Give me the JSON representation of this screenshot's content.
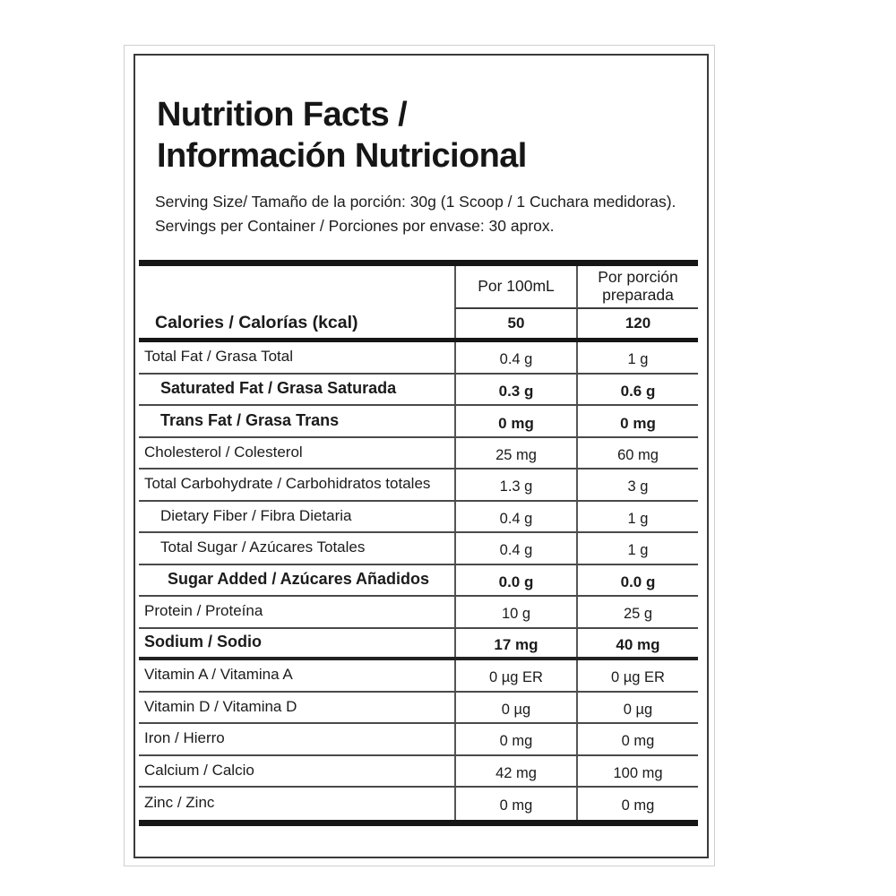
{
  "header": {
    "title_line1": "Nutrition Facts /",
    "title_line2": "Información Nutricional",
    "serving_size": "Serving Size/ Tamaño de la porción: 30g  (1 Scoop / 1 Cuchara medidoras).",
    "servings_per_container": "Servings per Container / Porciones por envase: 30 aprox."
  },
  "table": {
    "column_headers": [
      "Por 100mL",
      "Por porción preparada"
    ],
    "calories": {
      "label": "Calories / Calorías (kcal)",
      "per_100ml": "50",
      "per_portion": "120"
    },
    "rows": [
      {
        "label": "Total Fat / Grasa Total",
        "per_100ml": "0.4 g",
        "per_portion": "1 g",
        "bold": false,
        "indent": 0,
        "thick_divider_after": false
      },
      {
        "label": "Saturated Fat / Grasa Saturada",
        "per_100ml": "0.3 g",
        "per_portion": "0.6 g",
        "bold": true,
        "indent": 1,
        "thick_divider_after": false
      },
      {
        "label": "Trans Fat / Grasa Trans",
        "per_100ml": "0 mg",
        "per_portion": "0 mg",
        "bold": true,
        "indent": 1,
        "thick_divider_after": false
      },
      {
        "label": "Cholesterol / Colesterol",
        "per_100ml": "25 mg",
        "per_portion": "60 mg",
        "bold": false,
        "indent": 0,
        "thick_divider_after": false
      },
      {
        "label": "Total Carbohydrate / Carbohidratos totales",
        "per_100ml": "1.3 g",
        "per_portion": "3 g",
        "bold": false,
        "indent": 0,
        "thick_divider_after": false
      },
      {
        "label": "Dietary Fiber / Fibra Dietaria",
        "per_100ml": "0.4 g",
        "per_portion": "1 g",
        "bold": false,
        "indent": 1,
        "thick_divider_after": false
      },
      {
        "label": "Total Sugar / Azúcares Totales",
        "per_100ml": "0.4 g",
        "per_portion": "1 g",
        "bold": false,
        "indent": 1,
        "thick_divider_after": false
      },
      {
        "label": "Sugar Added / Azúcares Añadidos",
        "per_100ml": "0.0 g",
        "per_portion": "0.0 g",
        "bold": true,
        "indent": 2,
        "thick_divider_after": false
      },
      {
        "label": "Protein / Proteína",
        "per_100ml": "10 g",
        "per_portion": "25 g",
        "bold": false,
        "indent": 0,
        "thick_divider_after": false
      },
      {
        "label": "Sodium / Sodio",
        "per_100ml": "17 mg",
        "per_portion": "40 mg",
        "bold": true,
        "indent": 0,
        "thick_divider_after": true
      },
      {
        "label": "Vitamin A / Vitamina A",
        "per_100ml": "0 µg ER",
        "per_portion": "0 µg ER",
        "bold": false,
        "indent": 0,
        "thick_divider_after": false
      },
      {
        "label": "Vitamin D / Vitamina D",
        "per_100ml": "0 µg",
        "per_portion": "0 µg",
        "bold": false,
        "indent": 0,
        "thick_divider_after": false
      },
      {
        "label": "Iron / Hierro",
        "per_100ml": "0 mg",
        "per_portion": "0 mg",
        "bold": false,
        "indent": 0,
        "thick_divider_after": false
      },
      {
        "label": "Calcium / Calcio",
        "per_100ml": "42 mg",
        "per_portion": "100 mg",
        "bold": false,
        "indent": 0,
        "thick_divider_after": false
      },
      {
        "label": "Zinc / Zinc",
        "per_100ml": "0 mg",
        "per_portion": "0 mg",
        "bold": false,
        "indent": 0,
        "thick_divider_after": false
      }
    ]
  },
  "colors": {
    "frame_dark": "#3a3a3a",
    "frame_light": "#cfcfcf",
    "bar": "#161616",
    "row_line": "#4a4a4a",
    "text": "#1b1b1b"
  }
}
